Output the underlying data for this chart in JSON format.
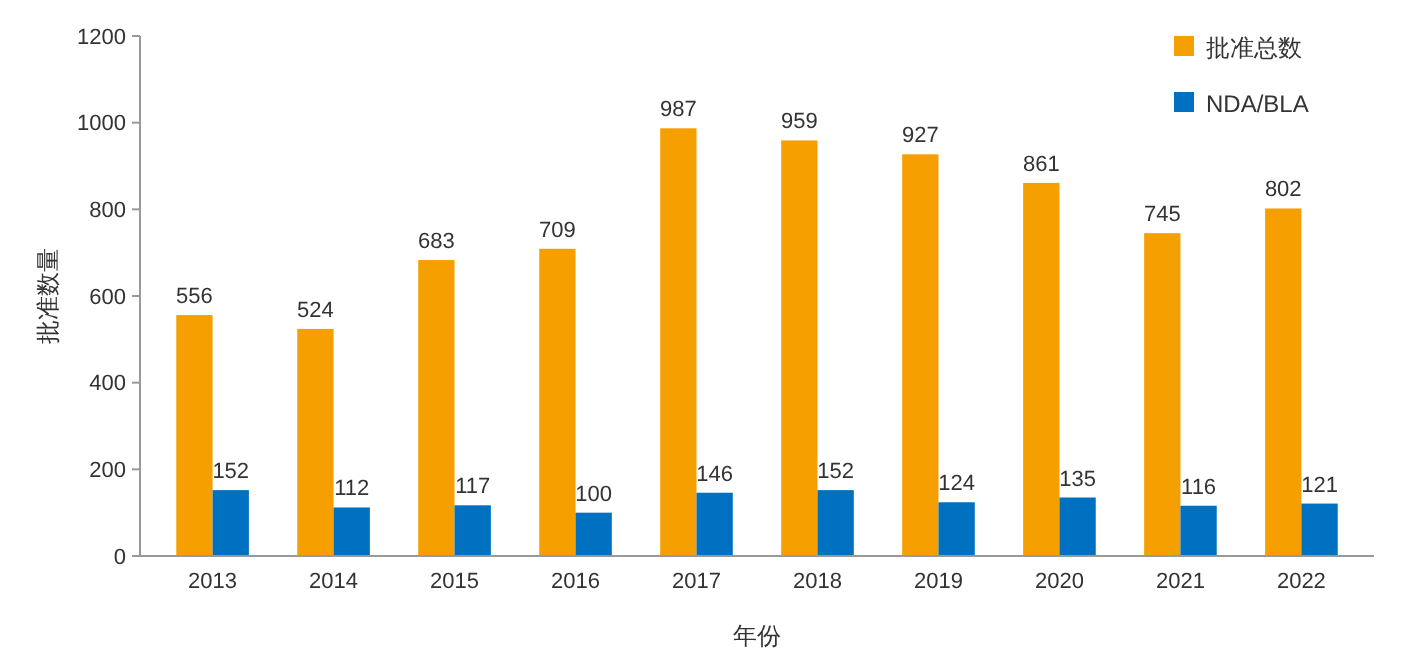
{
  "chart_data": {
    "type": "bar",
    "xlabel": "年份",
    "ylabel": "批准数量",
    "categories": [
      "2013",
      "2014",
      "2015",
      "2016",
      "2017",
      "2018",
      "2019",
      "2020",
      "2021",
      "2022"
    ],
    "series": [
      {
        "name": "批准总数",
        "color": "#f5a000",
        "values": [
          556,
          524,
          683,
          709,
          987,
          959,
          927,
          861,
          745,
          802
        ]
      },
      {
        "name": "NDA/BLA",
        "color": "#0070c0",
        "values": [
          152,
          112,
          117,
          100,
          146,
          152,
          124,
          135,
          116,
          121
        ]
      }
    ],
    "ylim": [
      0,
      1200
    ],
    "yticks": [
      0,
      200,
      400,
      600,
      800,
      1000,
      1200
    ],
    "grid": false,
    "legend": "top right",
    "data_labels": true
  }
}
